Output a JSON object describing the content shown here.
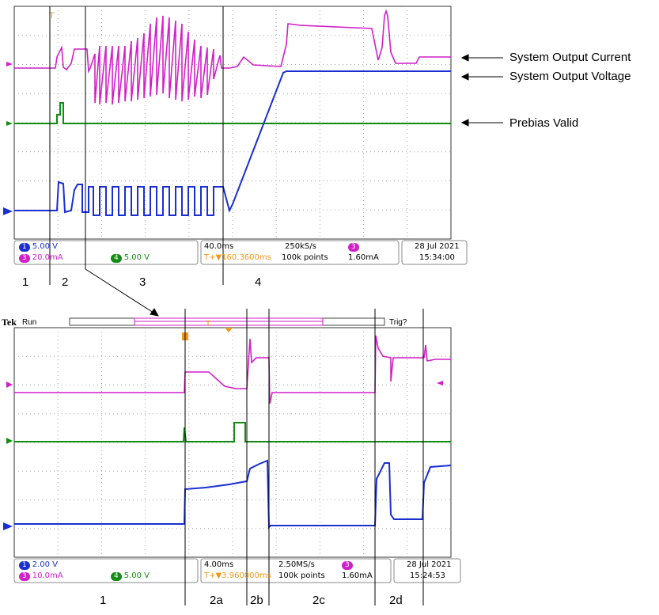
{
  "annotations": {
    "current": "System Output Current",
    "voltage": "System Output Voltage",
    "prebias": "Prebias Valid"
  },
  "colors": {
    "ch1": "#1a2fd0",
    "ch3": "#d21fc9",
    "ch4": "#128c12",
    "trigger": "#f0981a",
    "grid": "#a8a8a8"
  },
  "top_scope": {
    "segments": [
      "1",
      "2",
      "3",
      "4"
    ],
    "status": {
      "ch1": "1",
      "ch1_scale": "5.00 V",
      "ch3": "3",
      "ch3_scale": "20.0mA",
      "ch4": "4",
      "ch4_scale": "5.00 V",
      "timebase": "40.0ms",
      "sample_rate": "250kS/s",
      "trigger_delay": "T+▼160.3600ms",
      "record_length": "100k points",
      "trig_ch": "3",
      "trig_level": "1.60mA",
      "date": "28 Jul  2021",
      "time": "15:34:00"
    }
  },
  "bottom_scope": {
    "brand": "Tek",
    "run_state": "Run",
    "trig_state": "Trig?",
    "segments": [
      "1",
      "2a",
      "2b",
      "2c",
      "2d"
    ],
    "status": {
      "ch1": "1",
      "ch1_scale": "2.00 V",
      "ch3": "3",
      "ch3_scale": "10.0mA",
      "ch4": "4",
      "ch4_scale": "5.00 V",
      "timebase": "4.00ms",
      "sample_rate": "2.50MS/s",
      "trigger_delay": "T+▼3.960000ms",
      "record_length": "100k points",
      "trig_ch": "3",
      "trig_level": "1.60mA",
      "date": "28 Jul  2021",
      "time": "15:24:53"
    }
  }
}
